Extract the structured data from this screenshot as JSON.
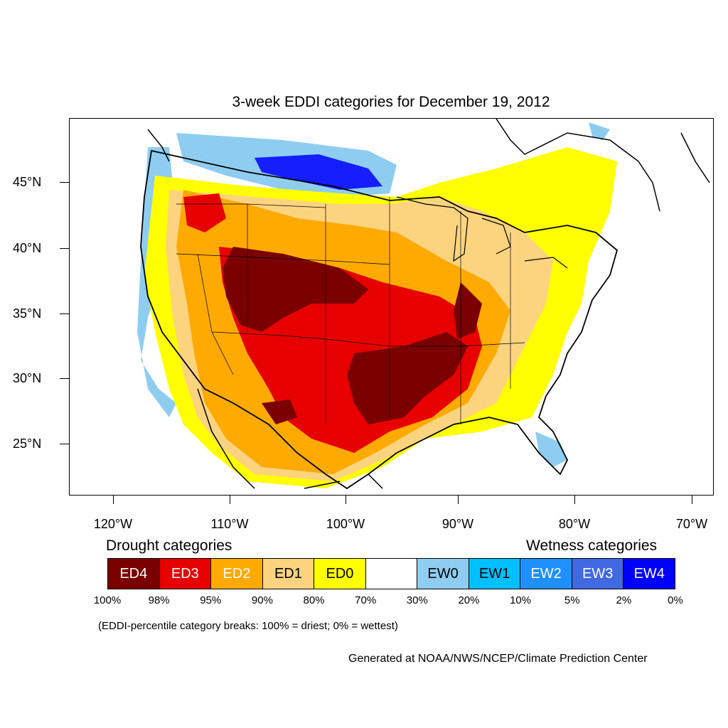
{
  "title": "3-week EDDI categories for December 19, 2012",
  "lat_labels": [
    "45°N",
    "40°N",
    "35°N",
    "30°N",
    "25°N"
  ],
  "lon_labels": [
    "120°W",
    "110°W",
    "100°W",
    "90°W",
    "80°W",
    "70°W"
  ],
  "legend": {
    "drought_heading": "Drought categories",
    "wetness_heading": "Wetness categories",
    "categories": [
      {
        "label": "ED4",
        "color": "#7a0000",
        "text_color": "#ffffff"
      },
      {
        "label": "ED3",
        "color": "#e60000",
        "text_color": "#ffffff"
      },
      {
        "label": "ED2",
        "color": "#ffaa00",
        "text_color": "#ffffff"
      },
      {
        "label": "ED1",
        "color": "#fcd37f",
        "text_color": "#000000"
      },
      {
        "label": "ED0",
        "color": "#ffff00",
        "text_color": "#000000"
      },
      {
        "label": "",
        "color": "#ffffff",
        "text_color": "#000000"
      },
      {
        "label": "EW0",
        "color": "#8ecdf0",
        "text_color": "#000000"
      },
      {
        "label": "EW1",
        "color": "#00bfff",
        "text_color": "#000000"
      },
      {
        "label": "EW2",
        "color": "#1e90ff",
        "text_color": "#ffffff"
      },
      {
        "label": "EW3",
        "color": "#4169e1",
        "text_color": "#ffffff"
      },
      {
        "label": "EW4",
        "color": "#0000ff",
        "text_color": "#ffffff"
      }
    ],
    "percent_breaks": [
      "100%",
      "98%",
      "95%",
      "90%",
      "80%",
      "70%",
      "30%",
      "20%",
      "10%",
      "5%",
      "2%",
      "0%"
    ]
  },
  "note": "(EDDI-percentile category breaks: 100% = driest; 0% = wettest)",
  "credit": "Generated at NOAA/NWS/NCEP/Climate Prediction Center"
}
